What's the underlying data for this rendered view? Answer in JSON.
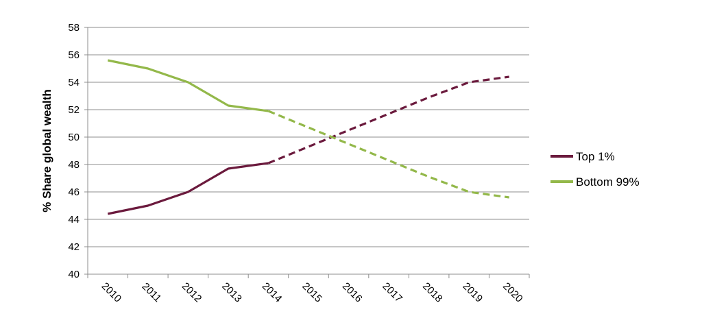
{
  "chart_data": {
    "type": "line",
    "title": "",
    "xlabel": "",
    "ylabel": "% Share global wealth",
    "x": [
      "2010",
      "2011",
      "2012",
      "2013",
      "2014",
      "2015",
      "2016",
      "2017",
      "2018",
      "2019",
      "2020"
    ],
    "ylim": [
      40,
      58
    ],
    "yticks": [
      40,
      42,
      44,
      46,
      48,
      50,
      52,
      54,
      56,
      58
    ],
    "grid": "horizontal",
    "legend_position": "right",
    "series": [
      {
        "name": "Top 1%",
        "color": "#6b1a3d",
        "values": [
          44.4,
          45.0,
          46.0,
          47.7,
          48.1,
          49.3,
          50.5,
          51.7,
          52.9,
          54.0,
          54.4
        ],
        "actual_until": "2014",
        "projected_style": "dashed"
      },
      {
        "name": "Bottom 99%",
        "color": "#93b84a",
        "values": [
          55.6,
          55.0,
          54.0,
          52.3,
          51.9,
          50.7,
          49.5,
          48.3,
          47.1,
          46.0,
          45.6
        ],
        "actual_until": "2014",
        "projected_style": "dashed"
      }
    ]
  }
}
